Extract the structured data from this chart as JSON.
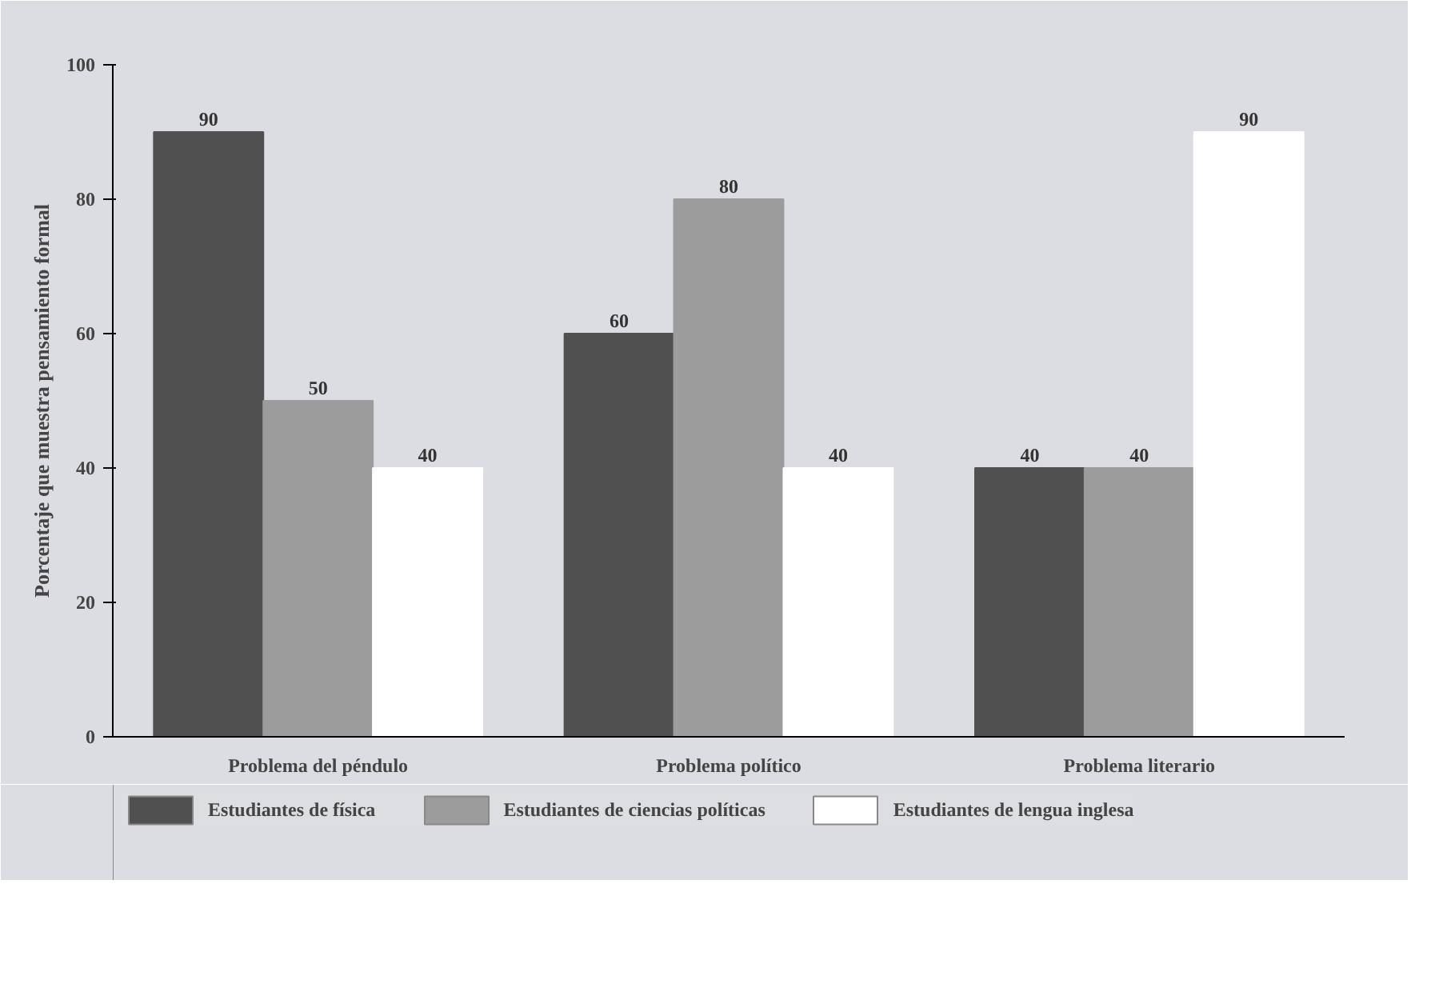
{
  "chart_data": {
    "type": "bar",
    "ylabel": "Porcentaje que muestra pensamiento formal",
    "categories": [
      "Problema del péndulo",
      "Problema político",
      "Problema literario"
    ],
    "series": [
      {
        "name": "Estudiantes de física",
        "color": "#505050",
        "values": [
          90,
          60,
          40
        ]
      },
      {
        "name": "Estudiantes de ciencias políticas",
        "color": "#9c9c9c",
        "values": [
          50,
          80,
          40
        ]
      },
      {
        "name": "Estudiantes de lengua inglesa",
        "color": "#ffffff",
        "values": [
          40,
          40,
          90
        ]
      }
    ],
    "ylim": [
      0,
      100
    ],
    "yticks": [
      0,
      20,
      40,
      60,
      80,
      100
    ],
    "grid": false,
    "legend": "bottom",
    "data_labels": true
  }
}
